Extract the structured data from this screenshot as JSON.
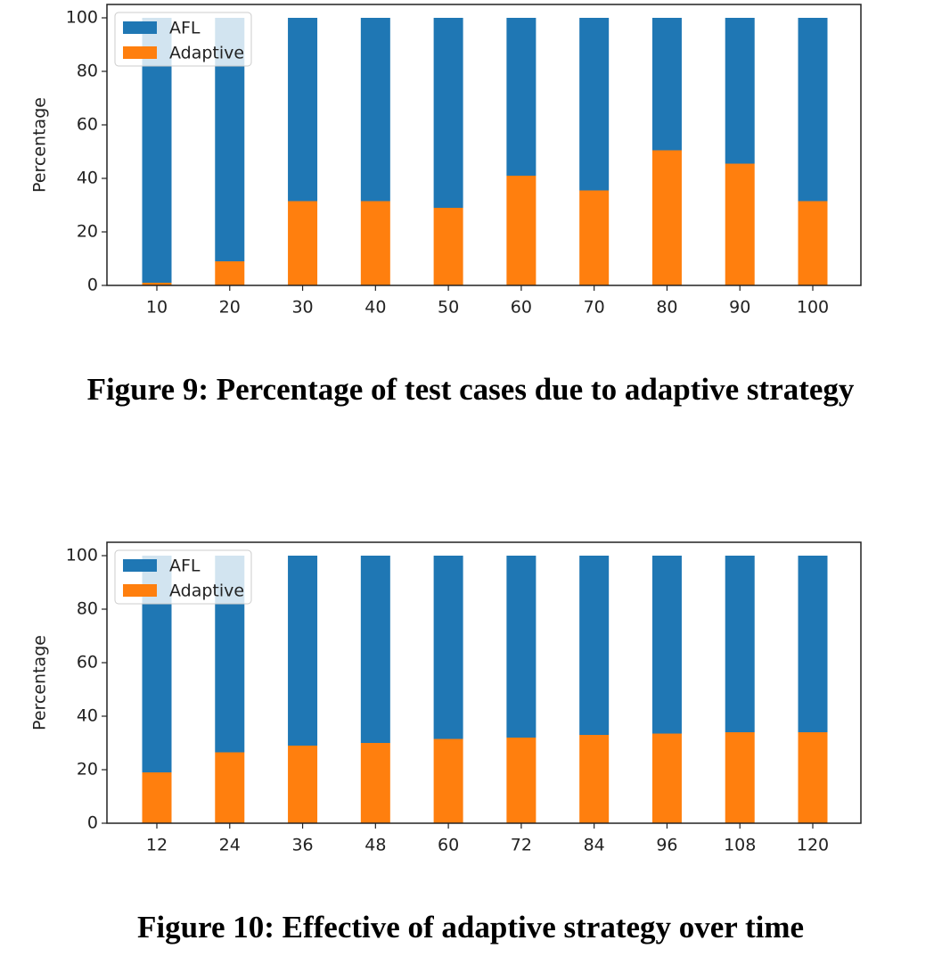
{
  "chart_data": [
    {
      "type": "stacked-bar",
      "title": "Figure 9: Percentage of test cases due to adaptive strategy",
      "ylabel": "Percentage",
      "categories": [
        "10",
        "20",
        "30",
        "40",
        "50",
        "60",
        "70",
        "80",
        "90",
        "100"
      ],
      "series": [
        {
          "name": "AFL",
          "color": "#1f77b4",
          "values": [
            99,
            91,
            68.5,
            68.5,
            71,
            59,
            64.5,
            49.5,
            54.5,
            68.5
          ]
        },
        {
          "name": "Adaptive",
          "color": "#ff7f0e",
          "values": [
            1,
            9,
            31.5,
            31.5,
            29,
            41,
            35.5,
            50.5,
            45.5,
            31.5
          ]
        }
      ],
      "ylim": [
        0,
        105
      ],
      "yticks": [
        0,
        20,
        40,
        60,
        80,
        100
      ],
      "legend": "upper left"
    },
    {
      "type": "stacked-bar",
      "title": "Figure 10: Effective of adaptive strategy over time",
      "ylabel": "Percentage",
      "categories": [
        "12",
        "24",
        "36",
        "48",
        "60",
        "72",
        "84",
        "96",
        "108",
        "120"
      ],
      "series": [
        {
          "name": "AFL",
          "color": "#1f77b4",
          "values": [
            81,
            73.5,
            71,
            70,
            68.5,
            68,
            67,
            66.5,
            66,
            66
          ]
        },
        {
          "name": "Adaptive",
          "color": "#ff7f0e",
          "values": [
            19,
            26.5,
            29,
            30,
            31.5,
            32,
            33,
            33.5,
            34,
            34
          ]
        }
      ],
      "ylim": [
        0,
        105
      ],
      "yticks": [
        0,
        20,
        40,
        60,
        80,
        100
      ],
      "legend": "upper left"
    }
  ]
}
